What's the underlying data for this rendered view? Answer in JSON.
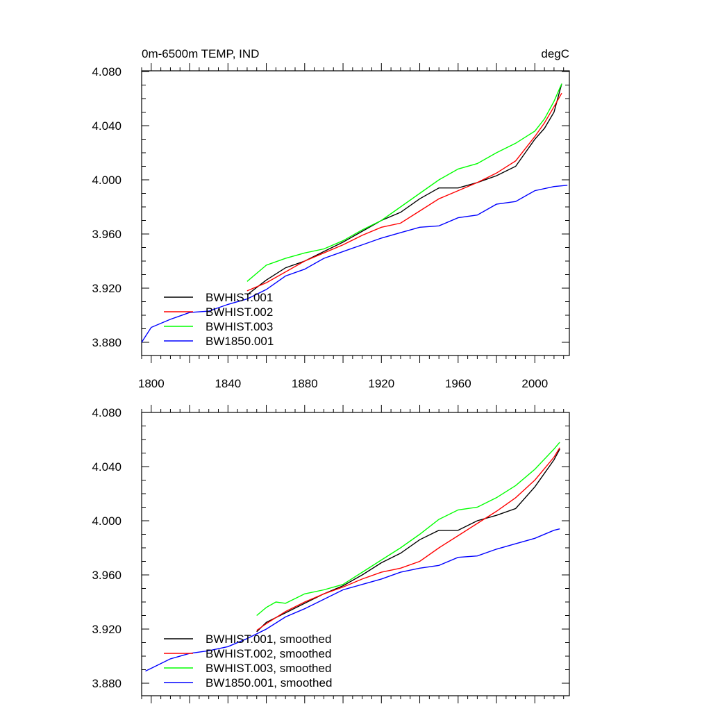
{
  "chart_data": [
    {
      "type": "line",
      "title": "0m-6500m TEMP, IND",
      "units": "degC",
      "xlim": [
        1795,
        2018
      ],
      "ylim": [
        3.87,
        4.085
      ],
      "yticks": [
        "3.880",
        "3.920",
        "3.960",
        "4.000",
        "4.040",
        "4.080"
      ],
      "xticks": [
        "1800",
        "1840",
        "1880",
        "1920",
        "1960",
        "2000"
      ],
      "legend_position": "bottom-left",
      "series": [
        {
          "name": "BWHIST.001",
          "color": "#000000",
          "x": [
            1850,
            1860,
            1870,
            1880,
            1890,
            1900,
            1910,
            1920,
            1930,
            1940,
            1950,
            1960,
            1970,
            1980,
            1990,
            2000,
            2005,
            2010,
            2014
          ],
          "y": [
            3.915,
            3.926,
            3.935,
            3.94,
            3.947,
            3.954,
            3.962,
            3.97,
            3.976,
            3.986,
            3.994,
            3.994,
            3.998,
            4.003,
            4.01,
            4.03,
            4.038,
            4.05,
            4.071
          ]
        },
        {
          "name": "BWHIST.002",
          "color": "#ff0000",
          "x": [
            1850,
            1860,
            1870,
            1880,
            1890,
            1900,
            1910,
            1920,
            1930,
            1940,
            1950,
            1960,
            1970,
            1980,
            1990,
            2000,
            2005,
            2010,
            2014
          ],
          "y": [
            3.918,
            3.924,
            3.932,
            3.94,
            3.946,
            3.952,
            3.959,
            3.965,
            3.968,
            3.977,
            3.986,
            3.992,
            3.998,
            4.005,
            4.014,
            4.032,
            4.042,
            4.054,
            4.064
          ]
        },
        {
          "name": "BWHIST.003",
          "color": "#00ff00",
          "x": [
            1850,
            1860,
            1870,
            1880,
            1890,
            1900,
            1910,
            1920,
            1930,
            1940,
            1950,
            1960,
            1970,
            1980,
            1990,
            2000,
            2005,
            2010,
            2014
          ],
          "y": [
            3.925,
            3.937,
            3.942,
            3.946,
            3.949,
            3.955,
            3.963,
            3.97,
            3.98,
            3.99,
            4.0,
            4.008,
            4.012,
            4.02,
            4.027,
            4.036,
            4.045,
            4.058,
            4.071
          ]
        },
        {
          "name": "BW1850.001",
          "color": "#0000ff",
          "x": [
            1795,
            1800,
            1810,
            1820,
            1830,
            1840,
            1850,
            1860,
            1870,
            1880,
            1890,
            1900,
            1910,
            1920,
            1930,
            1940,
            1950,
            1960,
            1970,
            1980,
            1990,
            2000,
            2010,
            2017
          ],
          "y": [
            3.88,
            3.891,
            3.897,
            3.902,
            3.903,
            3.908,
            3.912,
            3.919,
            3.929,
            3.934,
            3.942,
            3.947,
            3.952,
            3.957,
            3.961,
            3.965,
            3.966,
            3.972,
            3.974,
            3.982,
            3.984,
            3.992,
            3.995,
            3.996
          ]
        }
      ]
    },
    {
      "type": "line",
      "xlim": [
        1795,
        2018
      ],
      "ylim": [
        3.875,
        4.085
      ],
      "yticks": [
        "3.880",
        "3.920",
        "3.960",
        "4.000",
        "4.040",
        "4.080"
      ],
      "legend_position": "bottom-left",
      "series": [
        {
          "name": "BWHIST.001, smoothed",
          "color": "#000000",
          "x": [
            1855,
            1860,
            1870,
            1880,
            1890,
            1900,
            1910,
            1920,
            1930,
            1940,
            1950,
            1960,
            1970,
            1980,
            1990,
            2000,
            2010,
            2013
          ],
          "y": [
            3.918,
            3.925,
            3.932,
            3.939,
            3.946,
            3.952,
            3.96,
            3.969,
            3.976,
            3.986,
            3.993,
            3.993,
            4.0,
            4.004,
            4.009,
            4.025,
            4.045,
            4.053
          ]
        },
        {
          "name": "BWHIST.002, smoothed",
          "color": "#ff0000",
          "x": [
            1855,
            1860,
            1870,
            1880,
            1890,
            1900,
            1910,
            1920,
            1930,
            1940,
            1950,
            1960,
            1970,
            1980,
            1990,
            2000,
            2010,
            2013
          ],
          "y": [
            3.919,
            3.924,
            3.933,
            3.94,
            3.946,
            3.951,
            3.957,
            3.962,
            3.965,
            3.97,
            3.98,
            3.989,
            3.998,
            4.007,
            4.017,
            4.03,
            4.047,
            4.054
          ]
        },
        {
          "name": "BWHIST.003, smoothed",
          "color": "#00ff00",
          "x": [
            1855,
            1860,
            1865,
            1870,
            1880,
            1890,
            1900,
            1910,
            1920,
            1930,
            1940,
            1950,
            1960,
            1970,
            1980,
            1990,
            2000,
            2010,
            2013
          ],
          "y": [
            3.93,
            3.936,
            3.94,
            3.939,
            3.946,
            3.949,
            3.953,
            3.962,
            3.971,
            3.98,
            3.99,
            4.001,
            4.008,
            4.01,
            4.017,
            4.026,
            4.038,
            4.053,
            4.058
          ]
        },
        {
          "name": "BW1850.001, smoothed",
          "color": "#0000ff",
          "x": [
            1797,
            1800,
            1810,
            1820,
            1830,
            1840,
            1850,
            1860,
            1870,
            1880,
            1890,
            1900,
            1910,
            1920,
            1930,
            1940,
            1950,
            1960,
            1970,
            1980,
            1990,
            2000,
            2010,
            2013
          ],
          "y": [
            3.889,
            3.891,
            3.898,
            3.902,
            3.904,
            3.907,
            3.913,
            3.92,
            3.929,
            3.935,
            3.942,
            3.949,
            3.953,
            3.957,
            3.962,
            3.965,
            3.967,
            3.973,
            3.974,
            3.979,
            3.983,
            3.987,
            3.993,
            3.994
          ]
        }
      ]
    }
  ]
}
